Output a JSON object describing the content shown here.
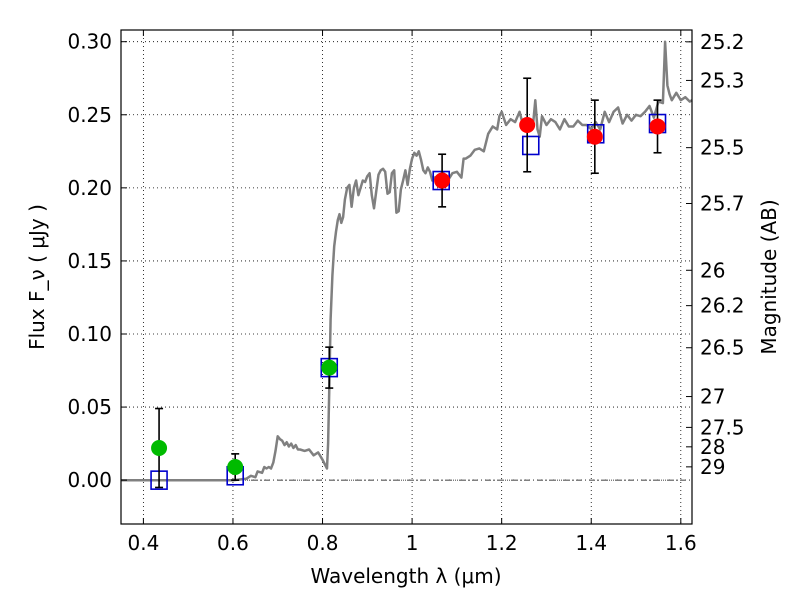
{
  "chart_data": {
    "type": "scatter",
    "xlabel": "Wavelength  λ (μm)",
    "ylabel": "Flux  F_ν  ( μJy )",
    "ylabel_right": "Magnitude (AB)",
    "xlim": [
      0.35,
      1.625
    ],
    "ylim": [
      -0.03,
      0.308
    ],
    "grid": true,
    "x_ticks": [
      0.4,
      0.6,
      0.8,
      1.0,
      1.2,
      1.4,
      1.6
    ],
    "x_tick_labels": [
      "0.4",
      "0.6",
      "0.8",
      "1",
      "1.2",
      "1.4",
      "1.6"
    ],
    "y_ticks": [
      0.0,
      0.05,
      0.1,
      0.15,
      0.2,
      0.25,
      0.3
    ],
    "y_tick_labels": [
      "0.00",
      "0.05",
      "0.10",
      "0.15",
      "0.20",
      "0.25",
      "0.30"
    ],
    "right_ticks": [
      {
        "label": "25.2",
        "flux": 0.2999
      },
      {
        "label": "25.3",
        "flux": 0.2735
      },
      {
        "label": "25.5",
        "flux": 0.2275
      },
      {
        "label": "25.7",
        "flux": 0.1893
      },
      {
        "label": "26",
        "flux": 0.1436
      },
      {
        "label": "26.2",
        "flux": 0.1194
      },
      {
        "label": "26.5",
        "flux": 0.0906
      },
      {
        "label": "27",
        "flux": 0.0572
      },
      {
        "label": "27.5",
        "flux": 0.0361
      },
      {
        "label": "28",
        "flux": 0.0228
      },
      {
        "label": "29",
        "flux": 0.0091
      }
    ],
    "zero_line": 0.0,
    "series": [
      {
        "kind": "line",
        "color": "#808080",
        "x": [
          0.35,
          0.5,
          0.6,
          0.63,
          0.64,
          0.65,
          0.655,
          0.665,
          0.67,
          0.675,
          0.68,
          0.685,
          0.69,
          0.695,
          0.7,
          0.705,
          0.71,
          0.715,
          0.72,
          0.725,
          0.73,
          0.735,
          0.74,
          0.745,
          0.75,
          0.76,
          0.77,
          0.78,
          0.79,
          0.8,
          0.81,
          0.8125,
          0.815,
          0.818,
          0.822,
          0.826,
          0.83,
          0.834,
          0.838,
          0.842,
          0.846,
          0.85,
          0.855,
          0.86,
          0.865,
          0.87,
          0.875,
          0.88,
          0.885,
          0.89,
          0.895,
          0.9,
          0.905,
          0.91,
          0.915,
          0.92,
          0.925,
          0.93,
          0.935,
          0.94,
          0.945,
          0.95,
          0.955,
          0.96,
          0.965,
          0.97,
          0.975,
          0.98,
          0.985,
          0.99,
          0.995,
          1.0,
          1.005,
          1.01,
          1.015,
          1.02,
          1.025,
          1.03,
          1.035,
          1.04,
          1.045,
          1.05,
          1.06,
          1.07,
          1.08,
          1.09,
          1.1,
          1.11,
          1.115,
          1.12,
          1.13,
          1.14,
          1.15,
          1.16,
          1.17,
          1.18,
          1.19,
          1.195,
          1.2,
          1.21,
          1.22,
          1.23,
          1.24,
          1.25,
          1.26,
          1.27,
          1.275,
          1.28,
          1.285,
          1.29,
          1.3,
          1.31,
          1.32,
          1.33,
          1.34,
          1.35,
          1.36,
          1.37,
          1.38,
          1.39,
          1.4,
          1.41,
          1.42,
          1.43,
          1.44,
          1.45,
          1.46,
          1.47,
          1.48,
          1.49,
          1.5,
          1.51,
          1.52,
          1.53,
          1.54,
          1.55,
          1.56,
          1.565,
          1.57,
          1.575,
          1.58,
          1.59,
          1.6,
          1.61,
          1.62,
          1.625
        ],
        "y": [
          0.0,
          0.0,
          0.0,
          0.001,
          0.003,
          0.002,
          0.006,
          0.005,
          0.009,
          0.008,
          0.009,
          0.008,
          0.012,
          0.02,
          0.03,
          0.028,
          0.027,
          0.024,
          0.026,
          0.023,
          0.025,
          0.022,
          0.024,
          0.021,
          0.021,
          0.02,
          0.021,
          0.017,
          0.019,
          0.014,
          0.008,
          0.025,
          0.06,
          0.11,
          0.14,
          0.16,
          0.17,
          0.178,
          0.182,
          0.176,
          0.18,
          0.192,
          0.2,
          0.202,
          0.187,
          0.2,
          0.205,
          0.195,
          0.2,
          0.205,
          0.204,
          0.208,
          0.21,
          0.195,
          0.186,
          0.198,
          0.209,
          0.212,
          0.213,
          0.211,
          0.196,
          0.197,
          0.21,
          0.212,
          0.183,
          0.184,
          0.199,
          0.205,
          0.212,
          0.202,
          0.213,
          0.22,
          0.224,
          0.222,
          0.225,
          0.219,
          0.212,
          0.21,
          0.214,
          0.211,
          0.205,
          0.207,
          0.208,
          0.21,
          0.205,
          0.21,
          0.211,
          0.207,
          0.22,
          0.22,
          0.222,
          0.226,
          0.227,
          0.225,
          0.237,
          0.242,
          0.24,
          0.249,
          0.252,
          0.243,
          0.247,
          0.245,
          0.252,
          0.24,
          0.245,
          0.243,
          0.26,
          0.24,
          0.235,
          0.249,
          0.243,
          0.247,
          0.245,
          0.24,
          0.247,
          0.242,
          0.242,
          0.246,
          0.243,
          0.243,
          0.24,
          0.245,
          0.24,
          0.252,
          0.245,
          0.252,
          0.255,
          0.244,
          0.25,
          0.246,
          0.25,
          0.249,
          0.252,
          0.256,
          0.248,
          0.259,
          0.258,
          0.3,
          0.27,
          0.264,
          0.26,
          0.265,
          0.26,
          0.262,
          0.259,
          0.26
        ]
      },
      {
        "kind": "open-squares",
        "color": "#0000cc",
        "x": [
          0.435,
          0.605,
          0.815,
          1.065,
          1.265,
          1.41,
          1.548
        ],
        "y": [
          0.0,
          0.003,
          0.077,
          0.205,
          0.229,
          0.237,
          0.244
        ]
      },
      {
        "kind": "points-with-errorbars",
        "color": "#00bb00",
        "x": [
          0.435,
          0.605,
          0.815
        ],
        "y": [
          0.022,
          0.009,
          0.077
        ],
        "yerr": [
          0.027,
          0.009,
          0.014
        ]
      },
      {
        "kind": "points-with-errorbars",
        "color": "#ff0000",
        "x": [
          1.067,
          1.257,
          1.408,
          1.548
        ],
        "y": [
          0.205,
          0.243,
          0.235,
          0.242
        ],
        "yerr": [
          0.018,
          0.032,
          0.025,
          0.018
        ]
      }
    ]
  }
}
